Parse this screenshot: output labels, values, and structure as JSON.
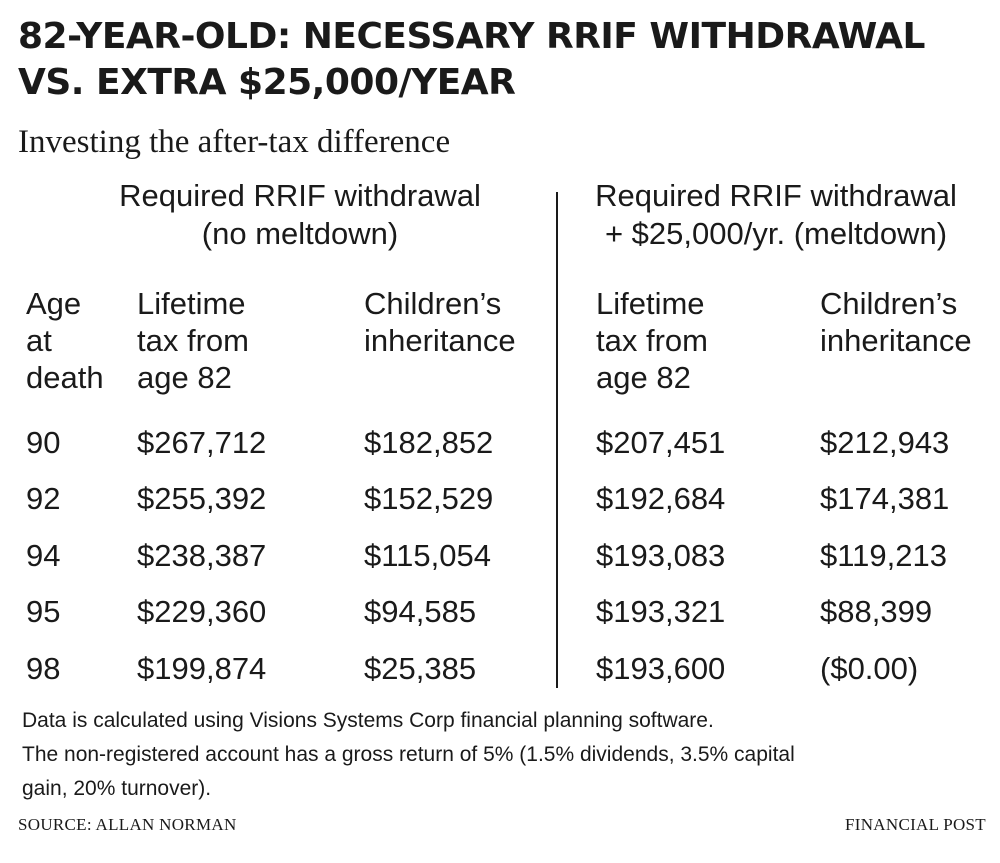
{
  "title": "82-YEAR-OLD: NECESSARY RRIF WITHDRAWAL VS. EXTRA $25,000/YEAR",
  "subtitle": "Investing the after-tax difference",
  "groups": {
    "left": {
      "line1": "Required RRIF withdrawal",
      "line2": "(no meltdown)"
    },
    "right": {
      "line1": "Required RRIF withdrawal",
      "line2": "+ $25,000/yr. (meltdown)"
    }
  },
  "columns": {
    "age": [
      "Age",
      "at",
      "death"
    ],
    "tax_left": [
      "Lifetime",
      "tax from",
      "age 82"
    ],
    "inheritance_left": [
      "Children’s",
      "inheritance"
    ],
    "tax_right": [
      "Lifetime",
      "tax from",
      "age 82"
    ],
    "inheritance_right": [
      "Children’s",
      "inheritance"
    ]
  },
  "rows": [
    {
      "age": "90",
      "tax_left": "$267,712",
      "inheritance_left": "$182,852",
      "tax_right": "$207,451",
      "inheritance_right": "$212,943"
    },
    {
      "age": "92",
      "tax_left": "$255,392",
      "inheritance_left": "$152,529",
      "tax_right": "$192,684",
      "inheritance_right": "$174,381"
    },
    {
      "age": "94",
      "tax_left": "$238,387",
      "inheritance_left": "$115,054",
      "tax_right": "$193,083",
      "inheritance_right": "$119,213"
    },
    {
      "age": "95",
      "tax_left": "$229,360",
      "inheritance_left": "$94,585",
      "tax_right": "$193,321",
      "inheritance_right": "$88,399"
    },
    {
      "age": "98",
      "tax_left": "$199,874",
      "inheritance_left": "$25,385",
      "tax_right": "$193,600",
      "inheritance_right": "($0.00)"
    }
  ],
  "notes": [
    "Data is calculated using Visions Systems Corp financial planning software.",
    "The non-registered account has a gross return of 5% (1.5% dividends, 3.5% capital",
    "gain, 20% turnover)."
  ],
  "footer": {
    "source": "SOURCE: ALLAN NORMAN",
    "publisher": "FINANCIAL POST"
  }
}
